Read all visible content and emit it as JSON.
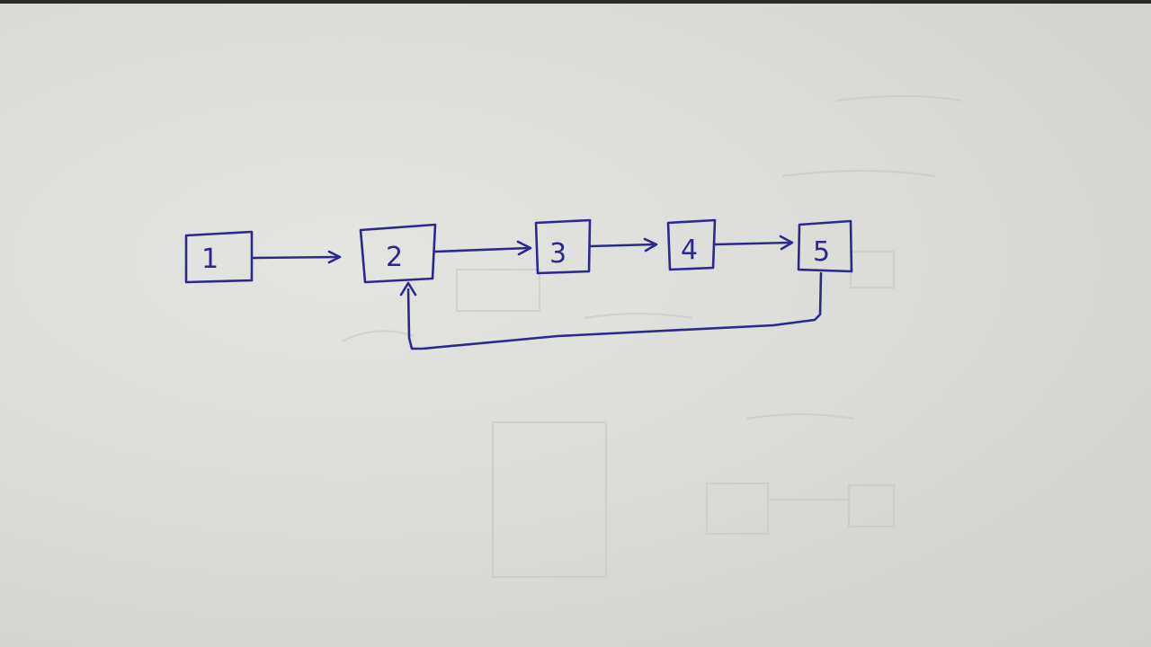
{
  "nodes": [
    {
      "label": "1"
    },
    {
      "label": "2"
    },
    {
      "label": "3"
    },
    {
      "label": "4"
    },
    {
      "label": "5"
    }
  ],
  "colors": {
    "ink": "#2a2a8c",
    "paper": "#dcdcd8"
  }
}
